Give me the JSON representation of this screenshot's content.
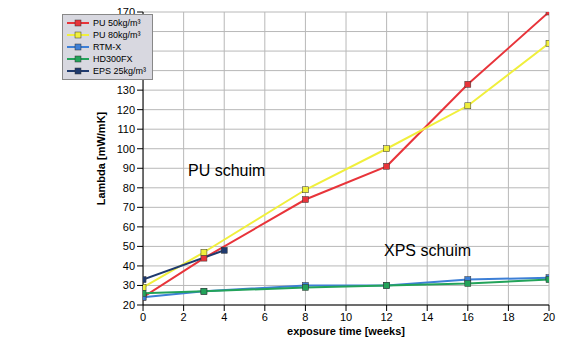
{
  "chart_data": {
    "type": "line",
    "xlabel": "exposure time [weeks]",
    "ylabel": "Lambda [mW/mK]",
    "xlim": [
      0,
      20
    ],
    "xticks": [
      0,
      2,
      4,
      6,
      8,
      10,
      12,
      14,
      16,
      18,
      20
    ],
    "ylim": [
      20,
      170
    ],
    "yticks": [
      20,
      30,
      40,
      50,
      60,
      70,
      80,
      90,
      100,
      110,
      120,
      130,
      140,
      150,
      160,
      170
    ],
    "grid": true,
    "legend": "upper left",
    "marker": "square",
    "annotations": [
      "PU schuim",
      "XPS schuim"
    ],
    "series": [
      {
        "name": "PU 50kg/m³",
        "color": "#e8343a",
        "x": [
          0,
          3,
          8,
          12,
          16,
          20
        ],
        "values": [
          24,
          44,
          74,
          91,
          133,
          170
        ]
      },
      {
        "name": "PU 80kg/m³",
        "color": "#f0ef3c",
        "x": [
          0,
          3,
          8,
          12,
          16,
          20
        ],
        "values": [
          29,
          47,
          79,
          100,
          122,
          154
        ]
      },
      {
        "name": "RTM-X",
        "color": "#3d7fd6",
        "x": [
          0,
          3,
          8,
          12,
          16,
          20
        ],
        "values": [
          24,
          27,
          30,
          30,
          33,
          34
        ]
      },
      {
        "name": "HD300FX",
        "color": "#23a35a",
        "x": [
          0,
          3,
          8,
          12,
          16,
          20
        ],
        "values": [
          26,
          27,
          29,
          30,
          31,
          33
        ]
      },
      {
        "name": "EPS 25kg/m³",
        "color": "#1f3a6e",
        "x": [
          0,
          4
        ],
        "values": [
          33,
          48
        ]
      }
    ]
  }
}
